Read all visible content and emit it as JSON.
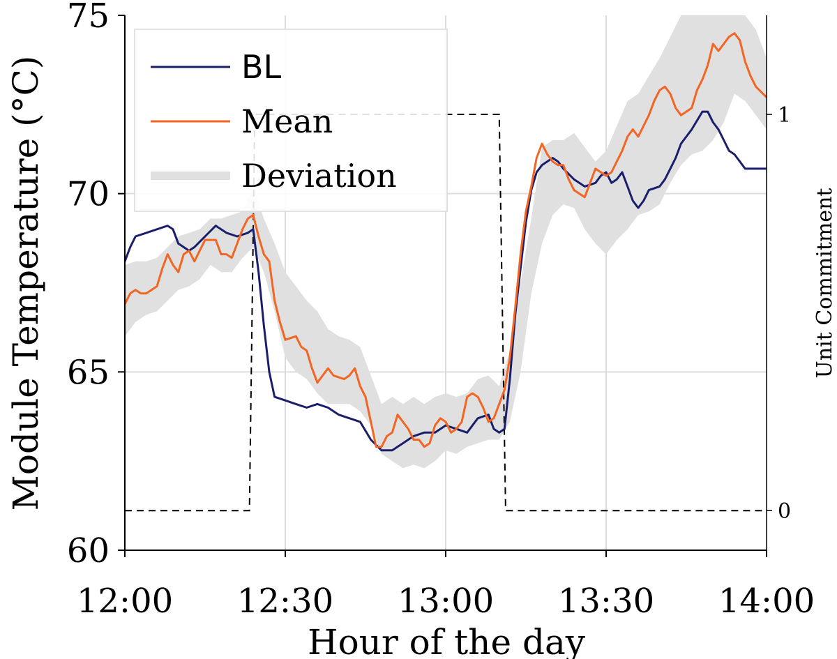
{
  "chart_data": {
    "type": "line",
    "xlabel": "Hour of the day",
    "ylabel": "Module Temperature (°C)",
    "y2label": "Unit Commitment",
    "xlim": [
      0,
      120
    ],
    "ylim": [
      60,
      75
    ],
    "y2lim": [
      -0.1,
      1.25
    ],
    "xticks": [
      {
        "value": 0,
        "label": "12:00"
      },
      {
        "value": 30,
        "label": "12:30"
      },
      {
        "value": 60,
        "label": "13:00"
      },
      {
        "value": 90,
        "label": "13:30"
      },
      {
        "value": 120,
        "label": "14:00"
      }
    ],
    "yticks": [
      {
        "value": 60,
        "label": "60"
      },
      {
        "value": 65,
        "label": "65"
      },
      {
        "value": 70,
        "label": "70"
      },
      {
        "value": 75,
        "label": "75"
      }
    ],
    "y2ticks": [
      {
        "value": 0,
        "label": "0"
      },
      {
        "value": 1,
        "label": "1"
      }
    ],
    "grid": true,
    "legend": {
      "placement": "top-left",
      "entries": [
        {
          "label": "BL",
          "color": "#1a1f6b"
        },
        {
          "label": "Mean",
          "color": "#f26522"
        },
        {
          "label": "Deviation",
          "color": "#e0e0e0"
        }
      ]
    },
    "series": [
      {
        "name": "BL",
        "color": "#1a1f6b",
        "points": [
          [
            0,
            68.1
          ],
          [
            1,
            68.5
          ],
          [
            2,
            68.8
          ],
          [
            4,
            68.9
          ],
          [
            6,
            69.0
          ],
          [
            8,
            69.1
          ],
          [
            9,
            69.0
          ],
          [
            10,
            68.6
          ],
          [
            12,
            68.4
          ],
          [
            13,
            68.5
          ],
          [
            15,
            68.8
          ],
          [
            17,
            69.1
          ],
          [
            19,
            68.9
          ],
          [
            21,
            68.8
          ],
          [
            23,
            68.9
          ],
          [
            24,
            69.0
          ],
          [
            25,
            67.8
          ],
          [
            26,
            66.3
          ],
          [
            27,
            65.0
          ],
          [
            28,
            64.3
          ],
          [
            30,
            64.2
          ],
          [
            32,
            64.1
          ],
          [
            34,
            64.0
          ],
          [
            36,
            64.1
          ],
          [
            38,
            64.0
          ],
          [
            40,
            63.8
          ],
          [
            42,
            63.7
          ],
          [
            44,
            63.6
          ],
          [
            46,
            63.1
          ],
          [
            48,
            62.8
          ],
          [
            50,
            62.8
          ],
          [
            52,
            63.0
          ],
          [
            54,
            63.2
          ],
          [
            56,
            63.3
          ],
          [
            58,
            63.3
          ],
          [
            60,
            63.5
          ],
          [
            62,
            63.4
          ],
          [
            64,
            63.3
          ],
          [
            66,
            63.7
          ],
          [
            68,
            63.8
          ],
          [
            69,
            63.4
          ],
          [
            70,
            63.3
          ],
          [
            71,
            63.4
          ],
          [
            72,
            64.8
          ],
          [
            73,
            66.6
          ],
          [
            74,
            67.9
          ],
          [
            75,
            69.2
          ],
          [
            76,
            70.1
          ],
          [
            77,
            70.6
          ],
          [
            78,
            70.8
          ],
          [
            80,
            71.0
          ],
          [
            81,
            70.9
          ],
          [
            82,
            70.7
          ],
          [
            84,
            70.4
          ],
          [
            86,
            70.2
          ],
          [
            88,
            70.3
          ],
          [
            89,
            70.5
          ],
          [
            90,
            70.6
          ],
          [
            91,
            70.3
          ],
          [
            92,
            70.4
          ],
          [
            93,
            70.6
          ],
          [
            94,
            70.2
          ],
          [
            95,
            69.8
          ],
          [
            96,
            69.6
          ],
          [
            97,
            69.8
          ],
          [
            98,
            70.1
          ],
          [
            100,
            70.2
          ],
          [
            101,
            70.4
          ],
          [
            102,
            70.7
          ],
          [
            103,
            71.0
          ],
          [
            104,
            71.4
          ],
          [
            106,
            71.8
          ],
          [
            108,
            72.3
          ],
          [
            109,
            72.3
          ],
          [
            110,
            72.0
          ],
          [
            111,
            71.8
          ],
          [
            112,
            71.5
          ],
          [
            113,
            71.2
          ],
          [
            114,
            71.1
          ],
          [
            115,
            70.9
          ],
          [
            116,
            70.7
          ],
          [
            118,
            70.7
          ],
          [
            120,
            70.7
          ]
        ]
      },
      {
        "name": "Mean",
        "color": "#f26522",
        "points": [
          [
            0,
            66.9
          ],
          [
            1,
            67.2
          ],
          [
            2,
            67.3
          ],
          [
            3,
            67.2
          ],
          [
            4,
            67.2
          ],
          [
            6,
            67.4
          ],
          [
            7,
            67.9
          ],
          [
            8,
            68.3
          ],
          [
            9,
            68.0
          ],
          [
            10,
            67.8
          ],
          [
            11,
            68.3
          ],
          [
            12,
            68.4
          ],
          [
            13,
            68.1
          ],
          [
            15,
            68.7
          ],
          [
            17,
            68.7
          ],
          [
            18,
            68.3
          ],
          [
            19,
            68.3
          ],
          [
            20,
            68.2
          ],
          [
            21,
            68.6
          ],
          [
            22,
            69.0
          ],
          [
            23,
            69.3
          ],
          [
            24,
            69.4
          ],
          [
            25,
            68.8
          ],
          [
            26,
            68.3
          ],
          [
            27,
            68.1
          ],
          [
            28,
            67.0
          ],
          [
            29,
            66.4
          ],
          [
            30,
            65.9
          ],
          [
            32,
            66.0
          ],
          [
            33,
            65.7
          ],
          [
            34,
            65.6
          ],
          [
            35,
            65.1
          ],
          [
            36,
            64.7
          ],
          [
            37,
            64.9
          ],
          [
            38,
            65.1
          ],
          [
            39,
            64.9
          ],
          [
            41,
            64.8
          ],
          [
            42,
            64.9
          ],
          [
            43,
            65.1
          ],
          [
            44,
            64.6
          ],
          [
            45,
            64.3
          ],
          [
            46,
            63.6
          ],
          [
            47,
            62.9
          ],
          [
            48,
            62.9
          ],
          [
            49,
            63.2
          ],
          [
            50,
            63.3
          ],
          [
            51,
            63.8
          ],
          [
            52,
            63.6
          ],
          [
            53,
            63.4
          ],
          [
            54,
            63.1
          ],
          [
            55,
            63.1
          ],
          [
            56,
            62.9
          ],
          [
            57,
            63.0
          ],
          [
            58,
            63.5
          ],
          [
            59,
            63.7
          ],
          [
            60,
            63.6
          ],
          [
            61,
            63.3
          ],
          [
            62,
            63.4
          ],
          [
            63,
            63.6
          ],
          [
            64,
            64.3
          ],
          [
            65,
            64.4
          ],
          [
            66,
            64.3
          ],
          [
            67,
            64.0
          ],
          [
            68,
            63.6
          ],
          [
            69,
            63.7
          ],
          [
            70,
            64.1
          ],
          [
            71,
            64.5
          ],
          [
            72,
            65.4
          ],
          [
            73,
            66.8
          ],
          [
            74,
            68.3
          ],
          [
            75,
            69.5
          ],
          [
            76,
            70.2
          ],
          [
            77,
            71.0
          ],
          [
            78,
            71.4
          ],
          [
            79,
            71.1
          ],
          [
            80,
            70.9
          ],
          [
            81,
            70.8
          ],
          [
            82,
            70.8
          ],
          [
            83,
            70.4
          ],
          [
            84,
            70.1
          ],
          [
            85,
            70.0
          ],
          [
            86,
            69.9
          ],
          [
            87,
            70.3
          ],
          [
            88,
            70.7
          ],
          [
            89,
            70.6
          ],
          [
            90,
            70.5
          ],
          [
            91,
            70.6
          ],
          [
            92,
            70.9
          ],
          [
            93,
            71.2
          ],
          [
            94,
            71.6
          ],
          [
            95,
            71.8
          ],
          [
            96,
            71.6
          ],
          [
            97,
            71.9
          ],
          [
            98,
            72.2
          ],
          [
            99,
            72.6
          ],
          [
            100,
            72.9
          ],
          [
            101,
            73.0
          ],
          [
            102,
            72.8
          ],
          [
            103,
            72.4
          ],
          [
            104,
            72.2
          ],
          [
            105,
            72.3
          ],
          [
            106,
            72.4
          ],
          [
            107,
            72.9
          ],
          [
            108,
            73.2
          ],
          [
            109,
            73.6
          ],
          [
            110,
            74.2
          ],
          [
            111,
            74.0
          ],
          [
            112,
            74.2
          ],
          [
            113,
            74.4
          ],
          [
            114,
            74.5
          ],
          [
            115,
            74.3
          ],
          [
            116,
            73.7
          ],
          [
            117,
            73.3
          ],
          [
            118,
            73.0
          ],
          [
            120,
            72.7
          ]
        ]
      }
    ],
    "deviation_band": {
      "name": "Deviation",
      "color": "#e0e0e0",
      "x": [
        0,
        2,
        4,
        6,
        8,
        10,
        12,
        14,
        16,
        18,
        20,
        22,
        24,
        26,
        28,
        30,
        32,
        34,
        36,
        38,
        40,
        42,
        44,
        46,
        48,
        50,
        52,
        54,
        56,
        58,
        60,
        62,
        64,
        66,
        68,
        70,
        72,
        74,
        76,
        78,
        80,
        82,
        84,
        86,
        88,
        90,
        92,
        94,
        96,
        98,
        100,
        102,
        104,
        106,
        108,
        110,
        112,
        114,
        116,
        118,
        120
      ],
      "lower": [
        66.0,
        66.4,
        66.6,
        66.7,
        67.0,
        67.3,
        67.4,
        67.6,
        68.0,
        67.8,
        67.8,
        68.2,
        68.5,
        67.8,
        66.7,
        65.4,
        65.0,
        64.8,
        64.4,
        64.1,
        64.1,
        64.1,
        63.9,
        63.5,
        62.7,
        62.5,
        62.3,
        62.4,
        62.3,
        62.5,
        62.8,
        62.7,
        62.9,
        63.0,
        63.1,
        63.1,
        63.6,
        65.0,
        67.2,
        68.6,
        69.4,
        69.7,
        69.6,
        69.0,
        68.6,
        68.3,
        68.7,
        69.0,
        69.4,
        69.5,
        69.7,
        70.3,
        70.8,
        71.1,
        71.2,
        71.5,
        72.0,
        72.8,
        72.6,
        72.2,
        71.8
      ],
      "upper": [
        68.0,
        68.1,
        68.1,
        68.2,
        68.5,
        68.8,
        68.9,
        69.0,
        69.3,
        69.3,
        69.4,
        69.5,
        70.2,
        69.3,
        68.6,
        67.8,
        67.4,
        67.0,
        66.7,
        66.2,
        66.0,
        65.9,
        65.7,
        64.9,
        64.1,
        64.3,
        64.1,
        64.3,
        64.1,
        64.3,
        64.4,
        64.3,
        64.4,
        64.8,
        64.9,
        64.6,
        65.6,
        67.5,
        69.3,
        71.3,
        71.5,
        71.5,
        71.7,
        71.3,
        70.9,
        71.2,
        71.9,
        72.6,
        72.8,
        73.3,
        73.8,
        74.4,
        75.0,
        75.0,
        75.0,
        75.0,
        75.0,
        75.0,
        75.0,
        74.6,
        73.8
      ]
    },
    "unit_commitment": {
      "axis": "right",
      "style": "dashed",
      "color": "#000000",
      "points": [
        [
          0,
          0
        ],
        [
          23.3,
          0
        ],
        [
          24.3,
          1
        ],
        [
          70.0,
          1
        ],
        [
          71.2,
          0
        ],
        [
          120,
          0
        ]
      ]
    }
  }
}
